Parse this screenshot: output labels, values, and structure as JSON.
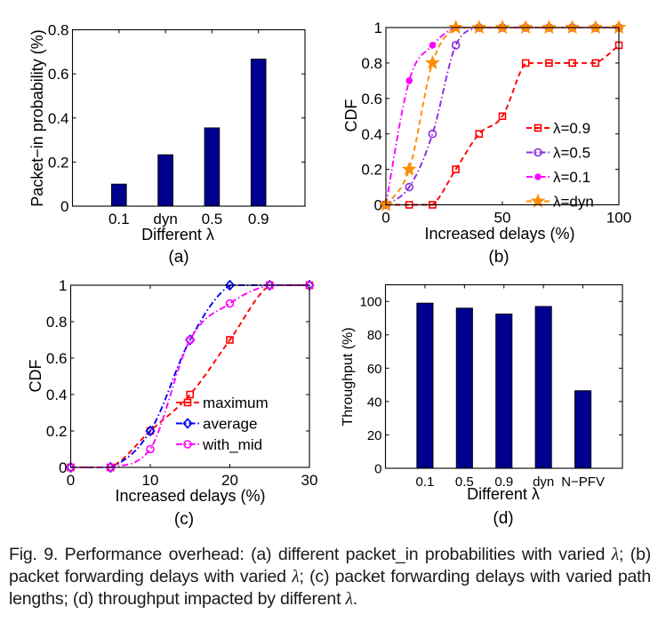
{
  "figure": {
    "caption_parts": [
      "Fig. 9. Performance overhead: (a) different packet_in probabilities with varied ",
      "λ",
      "; (b) packet forwarding delays with varied ",
      "λ",
      "; (c) packet forwarding delays with varied path lengths; (d) throughput impacted by different ",
      "λ",
      "."
    ]
  },
  "colors": {
    "bar_fill": "#00008F",
    "red": "#FF0000",
    "purple": "#8A2BE2",
    "magenta": "#FF00FF",
    "orange": "#FF8C00",
    "blue": "#0000FF"
  },
  "chart_data": [
    {
      "id": "a",
      "type": "bar",
      "panel_label": "(a)",
      "title": "",
      "xlabel": "Different λ",
      "ylabel": "Packet−in probability (%)",
      "categories": [
        "0.1",
        "dyn",
        "0.5",
        "0.9"
      ],
      "values": [
        0.1,
        0.233,
        0.355,
        0.667
      ],
      "ylim": [
        0,
        0.8
      ],
      "yticks": [
        0,
        0.2,
        0.4,
        0.6,
        0.8
      ],
      "ytick_labels": [
        "0",
        "0.2",
        "0.4",
        "0.6",
        "0.8"
      ],
      "xlim": [
        0,
        5
      ],
      "grid": false,
      "legend": null
    },
    {
      "id": "b",
      "type": "line",
      "panel_label": "(b)",
      "title": "",
      "xlabel": "Increased delays (%)",
      "ylabel": "CDF",
      "xlim": [
        0,
        100
      ],
      "ylim": [
        0,
        1
      ],
      "xticks": [
        0,
        50,
        100
      ],
      "xtick_labels": [
        "0",
        "50",
        "100"
      ],
      "yticks": [
        0,
        0.2,
        0.4,
        0.6,
        0.8,
        1
      ],
      "ytick_labels": [
        "0",
        "0.2",
        "0.4",
        "0.6",
        "0.8",
        "1"
      ],
      "grid": false,
      "legend": "center-right",
      "x": [
        0,
        10,
        20,
        30,
        40,
        50,
        60,
        70,
        80,
        90,
        100
      ],
      "series": [
        {
          "name": "λ=0.9",
          "color": "#FF0000",
          "style": "dashed",
          "marker": "square",
          "values": [
            0,
            0,
            0,
            0.2,
            0.4,
            0.5,
            0.8,
            0.8,
            0.8,
            0.8,
            0.9
          ]
        },
        {
          "name": "λ=0.5",
          "color": "#8A2BE2",
          "style": "dashdot",
          "marker": "circle",
          "values": [
            0,
            0.1,
            0.4,
            0.9,
            1,
            1,
            1,
            1,
            1,
            1,
            1
          ]
        },
        {
          "name": "λ=0.1",
          "color": "#FF00FF",
          "style": "dashdot",
          "marker": "dot",
          "values": [
            0,
            0.7,
            0.9,
            1,
            1,
            1,
            1,
            1,
            1,
            1,
            1
          ]
        },
        {
          "name": "λ=dyn",
          "color": "#FF8C00",
          "style": "dashed",
          "marker": "star",
          "values": [
            0,
            0.2,
            0.8,
            1,
            1,
            1,
            1,
            1,
            1,
            1,
            1
          ]
        }
      ]
    },
    {
      "id": "c",
      "type": "line",
      "panel_label": "(c)",
      "title": "",
      "xlabel": "Increased delays (%)",
      "ylabel": "CDF",
      "xlim": [
        0,
        30
      ],
      "ylim": [
        0,
        1
      ],
      "xticks": [
        0,
        10,
        20,
        30
      ],
      "xtick_labels": [
        "0",
        "10",
        "20",
        "30"
      ],
      "yticks": [
        0,
        0.2,
        0.4,
        0.6,
        0.8,
        1
      ],
      "ytick_labels": [
        "0",
        "0.2",
        "0.4",
        "0.6",
        "0.8",
        "1"
      ],
      "grid": false,
      "legend": "bottom-right",
      "x": [
        0,
        5,
        10,
        15,
        20,
        25,
        30
      ],
      "series": [
        {
          "name": "maximum",
          "color": "#FF0000",
          "style": "dashed",
          "marker": "square",
          "values": [
            0,
            0,
            0.2,
            0.4,
            0.7,
            1,
            1
          ]
        },
        {
          "name": "average",
          "color": "#0000FF",
          "style": "dashdot",
          "marker": "diamond",
          "values": [
            0,
            0,
            0.2,
            0.7,
            1,
            1,
            1
          ]
        },
        {
          "name": "with_mid",
          "color": "#FF00FF",
          "style": "dashdot",
          "marker": "circle",
          "values": [
            0,
            0,
            0.1,
            0.7,
            0.9,
            1,
            1
          ]
        }
      ]
    },
    {
      "id": "d",
      "type": "bar",
      "panel_label": "(d)",
      "title": "",
      "xlabel": "Different λ",
      "ylabel": "Throughput (%)",
      "categories": [
        "0.1",
        "0.5",
        "0.9",
        "dyn",
        "N−PFV"
      ],
      "values": [
        99,
        96,
        92.5,
        97,
        46.5
      ],
      "ylim": [
        0,
        110
      ],
      "yticks": [
        0,
        20,
        40,
        60,
        80,
        100
      ],
      "ytick_labels": [
        "0",
        "20",
        "40",
        "60",
        "80",
        "100"
      ],
      "xlim": [
        0,
        6
      ],
      "grid": false,
      "legend": null
    }
  ]
}
